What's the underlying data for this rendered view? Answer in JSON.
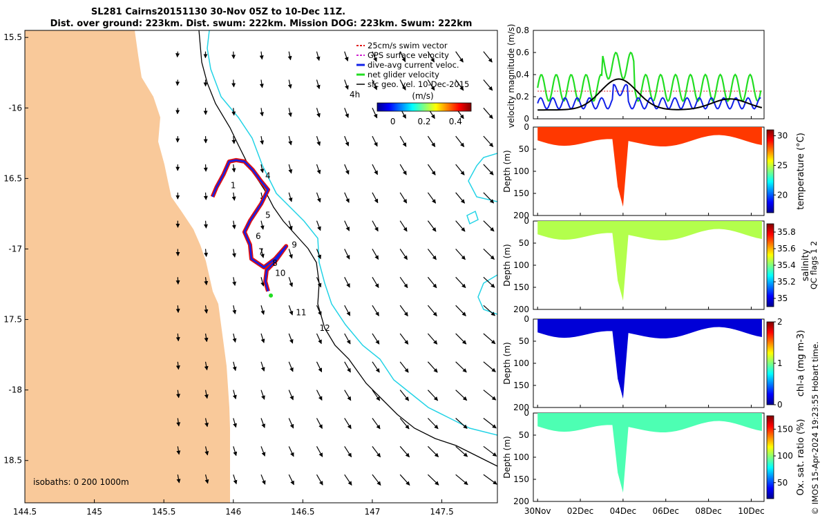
{
  "colors": {
    "land": "#F9C99A",
    "isobath200": "#000000",
    "isobath1000": "#22D3E6",
    "track": "#E01010",
    "track_dive": "#1020E8",
    "net_velocity": "#22DD22",
    "arrow": "#000000"
  },
  "map": {
    "title_line1": "SL281 Cairns20151130 30-Nov 05Z to 10-Dec 11Z.",
    "title_line2": "Dist. over ground: 223km. Dist. swum: 222km. Mission DOG: 223km. Swum: 222km",
    "lon_range": [
      144.5,
      147.9
    ],
    "lat_range": [
      -18.8,
      -15.45
    ],
    "lon_ticks": [
      "144.5",
      "145",
      "145.5",
      "146",
      "146.5",
      "147",
      "147.5"
    ],
    "lat_ticks": [
      "15.5",
      "-16",
      "16.5",
      "-17",
      "17.5",
      "-18",
      "18.5"
    ],
    "lat_tick_values": [
      -15.5,
      -16,
      -16.5,
      -17,
      -17.5,
      -18,
      -18.5
    ],
    "lon_tick_values": [
      144.5,
      145,
      145.5,
      146,
      146.5,
      147,
      147.5
    ],
    "legend": [
      {
        "label": "25cm/s swim vector",
        "color": "#E01010",
        "style": "dash"
      },
      {
        "label": "GPS surface velocity",
        "color": "#D020D0",
        "style": "dash"
      },
      {
        "label": "dive-avg current veloc.",
        "color": "#1020E8",
        "style": "solid"
      },
      {
        "label": "net glider velocity",
        "color": "#22DD22",
        "style": "solid"
      },
      {
        "label": "sfc geo. vel. 10-Dec-2015",
        "color": "#000000",
        "style": "arrow"
      }
    ],
    "colorbar_title": "(m/s)",
    "colorbar_ticks": [
      "0",
      "0.2",
      "0.4"
    ],
    "colorbar_range": [
      -0.1,
      0.5
    ],
    "time_label": "4h",
    "isobath_note": "isobaths: 0   200   1000m",
    "track_labels": [
      {
        "text": "1",
        "lon": 145.98,
        "lat": -16.57
      },
      {
        "text": "4",
        "lon": 146.23,
        "lat": -16.5
      },
      {
        "text": "5",
        "lon": 146.23,
        "lat": -16.78
      },
      {
        "text": "6",
        "lon": 146.16,
        "lat": -16.93
      },
      {
        "text": "7",
        "lon": 146.18,
        "lat": -17.04
      },
      {
        "text": "8",
        "lon": 146.28,
        "lat": -17.12
      },
      {
        "text": "9",
        "lon": 146.42,
        "lat": -16.99
      },
      {
        "text": "10",
        "lon": 146.3,
        "lat": -17.19
      },
      {
        "text": "11",
        "lon": 146.45,
        "lat": -17.47
      },
      {
        "text": "12",
        "lon": 146.62,
        "lat": -17.58
      }
    ],
    "track": [
      [
        145.85,
        -16.63
      ],
      [
        145.88,
        -16.56
      ],
      [
        145.93,
        -16.47
      ],
      [
        145.97,
        -16.38
      ],
      [
        146.02,
        -16.37
      ],
      [
        146.08,
        -16.38
      ],
      [
        146.14,
        -16.44
      ],
      [
        146.2,
        -16.52
      ],
      [
        146.25,
        -16.58
      ],
      [
        146.2,
        -16.68
      ],
      [
        146.12,
        -16.8
      ],
      [
        146.08,
        -16.88
      ],
      [
        146.12,
        -16.97
      ],
      [
        146.13,
        -17.07
      ],
      [
        146.22,
        -17.13
      ],
      [
        146.3,
        -17.07
      ],
      [
        146.38,
        -16.98
      ],
      [
        146.3,
        -17.09
      ],
      [
        146.24,
        -17.15
      ],
      [
        146.23,
        -17.23
      ],
      [
        146.25,
        -17.3
      ]
    ],
    "end_point": [
      146.27,
      -17.33
    ]
  },
  "velocity_panel": {
    "ylabel": "velocity magnitude (m/s)",
    "ylim": [
      0,
      0.8
    ],
    "yticks": [
      "0",
      "0.2",
      "0.4",
      "0.6",
      "0.8"
    ],
    "swim_speed": 0.25
  },
  "profiles": [
    {
      "name": "temperature",
      "label": "temperature (°C)",
      "ticks": [
        "20",
        "25",
        "30"
      ],
      "range": [
        17,
        31
      ]
    },
    {
      "name": "salinity",
      "label": "salinity",
      "ticks": [
        "35",
        "35.2",
        "35.4",
        "35.6",
        "35.8"
      ],
      "range": [
        34.9,
        35.9
      ]
    },
    {
      "name": "chl-a",
      "label": "chl-a (mg m-3)",
      "ticks": [
        "0",
        "1",
        "2"
      ],
      "range": [
        0,
        2
      ]
    },
    {
      "name": "oxygen",
      "label": "Ox. sat. ratio (%)",
      "ticks": [
        "50",
        "100",
        "150"
      ],
      "range": [
        20,
        175
      ]
    }
  ],
  "profile_axis": {
    "ylabel": "Depth (m)",
    "yticks": [
      "0",
      "50",
      "100",
      "150",
      "200"
    ],
    "xticks": [
      "30Nov",
      "02Dec",
      "04Dec",
      "06Dec",
      "08Dec",
      "10Dec"
    ],
    "x_range_days": [
      -0.2,
      10.6
    ],
    "time_axis_origin": "30Nov"
  },
  "side_note": "QC flags 1  2",
  "copyright": "© IMOS 15-Apr-2024 19:23:55 Hobart time."
}
